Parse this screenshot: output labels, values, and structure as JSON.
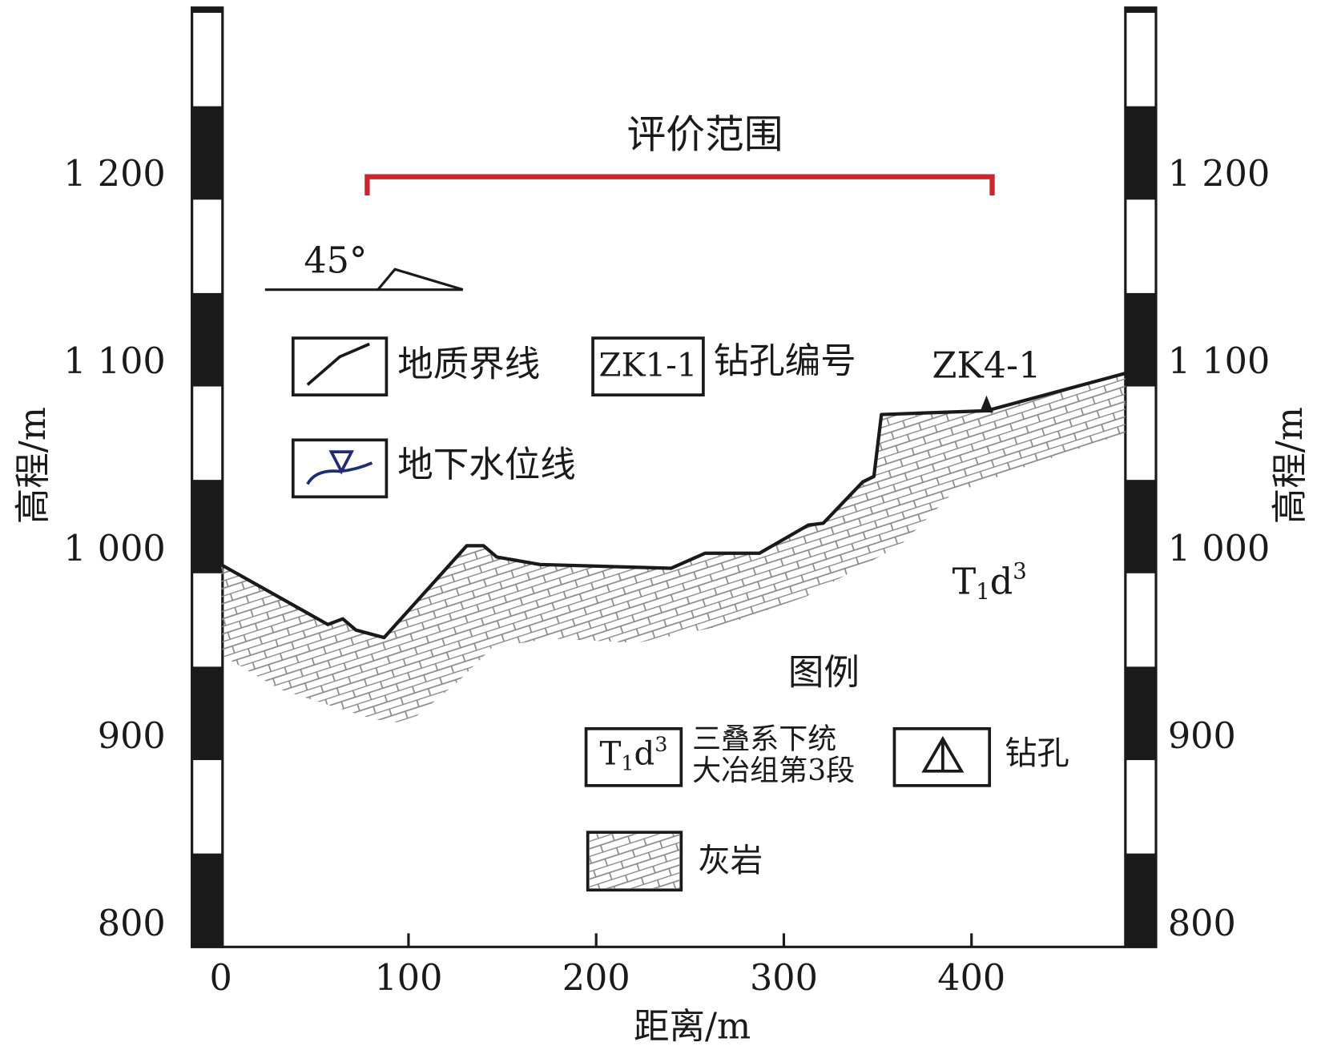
{
  "chart_data": {
    "type": "line",
    "title": "评价范围",
    "x": [
      0,
      57,
      65,
      72,
      87,
      131,
      140,
      147,
      170,
      240,
      258,
      287,
      313,
      321,
      342,
      348,
      352,
      408,
      482
    ],
    "values": [
      993,
      961,
      964,
      958,
      954,
      1003,
      1003,
      997,
      993,
      991,
      999,
      999,
      1014,
      1015,
      1037,
      1040,
      1073,
      1075,
      1095
    ],
    "color": "#1a1a1a",
    "range_color": "#d2232a",
    "range": [
      78,
      411
    ],
    "xlim": [
      0,
      482
    ],
    "ylim": [
      789,
      1290
    ],
    "xticks": [
      0,
      100,
      200,
      300,
      400
    ],
    "yticks": [
      800,
      900,
      {
        "value": 1000,
        "label": "1 000"
      },
      {
        "value": 1100,
        "label": "1 100"
      },
      {
        "value": 1200,
        "label": "1 200"
      }
    ],
    "y2ticks": [
      800,
      900,
      {
        "value": 1000,
        "label": "1 000"
      },
      {
        "value": 1100,
        "label": "1 100"
      },
      {
        "value": 1200,
        "label": "1 200"
      }
    ],
    "xlabel": "距离/m",
    "ylabel": "高程/m",
    "y2label": "高程/m"
  },
  "annotations": {
    "dip": "45°",
    "borehole": {
      "label": "ZK4-1",
      "x": 408
    },
    "formation": {
      "t": "T",
      "sub": "1",
      "d": "d",
      "sup": "3"
    }
  },
  "legend": {
    "title": "图例",
    "boundary": "地质界线",
    "bore_id_box": "ZK1-1",
    "bore_id": "钻孔编号",
    "water": "地下水位线",
    "formation_box": {
      "t": "T",
      "sub": "1",
      "d": "d",
      "sup": "3"
    },
    "formation_desc": [
      "三叠系下统",
      "大冶组第3段"
    ],
    "borehole": "钻孔",
    "limestone": "灰岩"
  }
}
